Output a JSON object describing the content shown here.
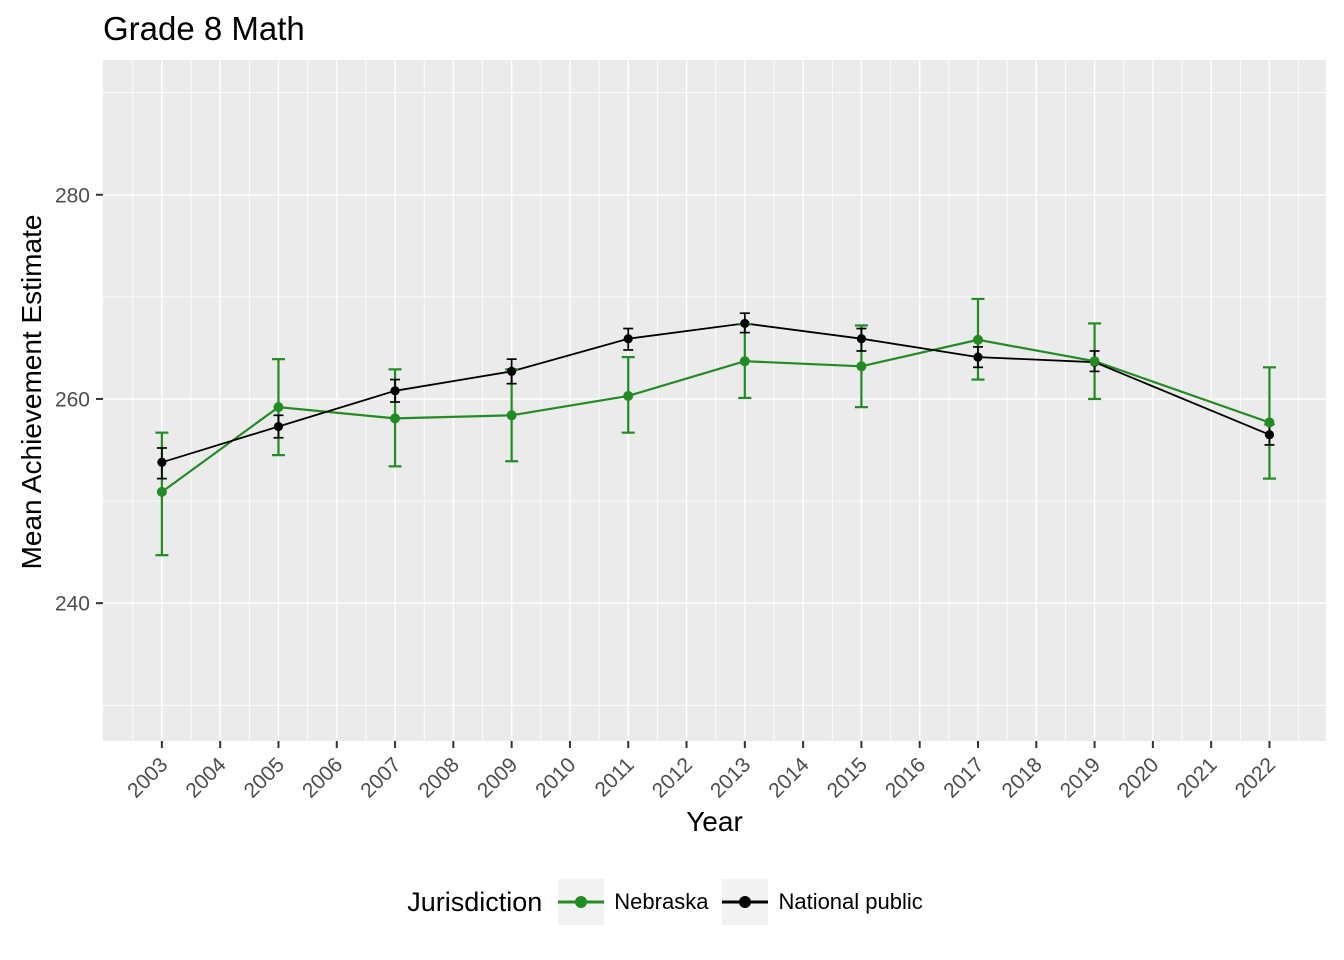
{
  "chart_data": {
    "type": "line",
    "title": "Grade 8 Math",
    "xlabel": "Year",
    "ylabel": "Mean Achievement Estimate",
    "legend_title": "Jurisdiction",
    "legend_position": "bottom",
    "x_ticks": [
      2003,
      2004,
      2005,
      2006,
      2007,
      2008,
      2009,
      2010,
      2011,
      2012,
      2013,
      2014,
      2015,
      2016,
      2017,
      2018,
      2019,
      2020,
      2021,
      2022
    ],
    "y_ticks": [
      240,
      260,
      280
    ],
    "y_minor_ticks": [
      230,
      250,
      270,
      290
    ],
    "xlim": [
      2001.99,
      2022.97
    ],
    "ylim": [
      226.5,
      293.2
    ],
    "grid": true,
    "error_bars": true,
    "colors": {
      "panel_background": "#EBEBEB",
      "grid": "#FFFFFF",
      "tick_mark": "#333333",
      "tick_text": "#4D4D4D",
      "legend_key_fill": "#F2F2F2"
    },
    "x": [
      2003,
      2005,
      2007,
      2009,
      2011,
      2013,
      2015,
      2017,
      2019,
      2022
    ],
    "series": [
      {
        "name": "Nebraska",
        "color": "#228B22",
        "y": [
          250.9,
          259.2,
          258.1,
          258.4,
          260.3,
          263.7,
          263.2,
          265.8,
          263.7,
          257.7
        ],
        "y_low": [
          244.7,
          254.5,
          253.4,
          253.9,
          256.7,
          260.1,
          259.2,
          261.9,
          260.0,
          252.2
        ],
        "y_high": [
          256.7,
          263.9,
          262.9,
          262.9,
          264.1,
          267.3,
          267.2,
          269.8,
          267.4,
          263.1
        ]
      },
      {
        "name": "National public",
        "color": "#000000",
        "y": [
          253.8,
          257.3,
          260.8,
          262.7,
          265.9,
          267.4,
          265.9,
          264.1,
          263.6,
          256.5
        ],
        "y_low": [
          252.2,
          256.2,
          259.7,
          261.5,
          264.8,
          266.5,
          264.7,
          263.1,
          262.7,
          255.5
        ],
        "y_high": [
          255.2,
          258.4,
          261.9,
          263.9,
          266.9,
          268.4,
          266.9,
          265.1,
          264.7,
          257.5
        ]
      }
    ]
  }
}
